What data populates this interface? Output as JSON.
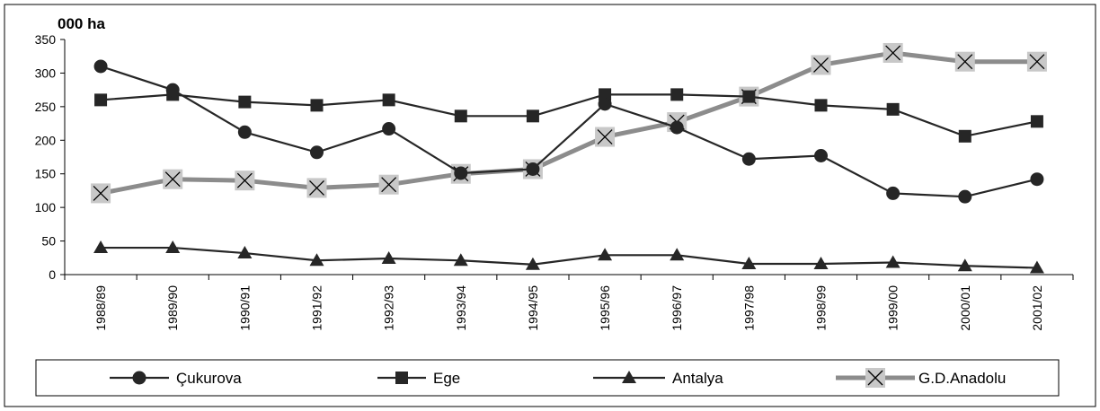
{
  "chart_data": {
    "type": "line",
    "unit_label": "000 ha",
    "categories": [
      "1988/89",
      "1989/90",
      "1990/91",
      "1991/92",
      "1992/93",
      "1993/94",
      "1994/95",
      "1995/96",
      "1996/97",
      "1997/98",
      "1998/99",
      "1999/00",
      "2000/01",
      "2001/02"
    ],
    "ylim": [
      0,
      350
    ],
    "yticks": [
      0,
      50,
      100,
      150,
      200,
      250,
      300,
      350
    ],
    "grid": false,
    "legend_position": "bottom",
    "series": [
      {
        "name": "Çukurova",
        "marker": "circle",
        "color": "#262626",
        "values": [
          310,
          275,
          212,
          182,
          217,
          151,
          157,
          254,
          219,
          172,
          177,
          121,
          116,
          142
        ]
      },
      {
        "name": "Ege",
        "marker": "square",
        "color": "#262626",
        "values": [
          260,
          268,
          257,
          252,
          260,
          236,
          236,
          268,
          268,
          265,
          252,
          246,
          206,
          228
        ]
      },
      {
        "name": "Antalya",
        "marker": "triangle",
        "color": "#262626",
        "values": [
          40,
          40,
          32,
          21,
          24,
          21,
          15,
          29,
          29,
          16,
          16,
          18,
          13,
          10
        ]
      },
      {
        "name": "G.D.Anadolu",
        "marker": "x-square",
        "color": "#8c8c8c",
        "values": [
          121,
          142,
          140,
          129,
          134,
          150,
          157,
          205,
          227,
          265,
          312,
          330,
          317,
          317
        ]
      }
    ]
  }
}
